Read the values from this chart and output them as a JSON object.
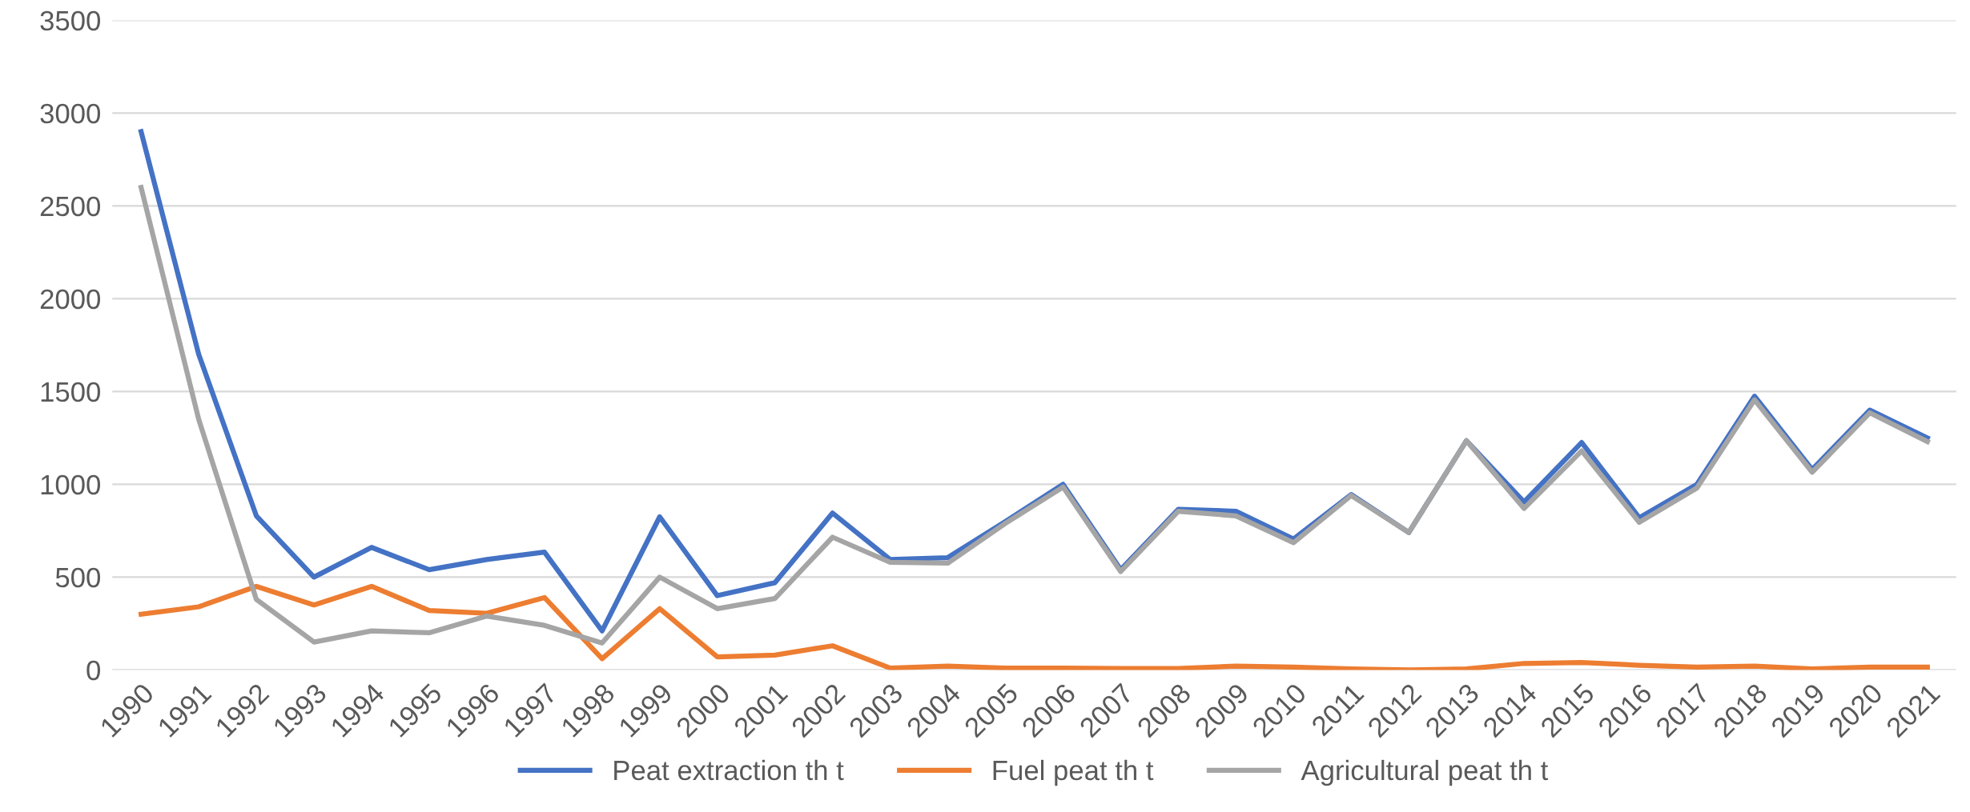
{
  "chart_data": {
    "type": "line",
    "categories": [
      "1990",
      "1991",
      "1992",
      "1993",
      "1994",
      "1995",
      "1996",
      "1997",
      "1998",
      "1999",
      "2000",
      "2001",
      "2002",
      "2003",
      "2004",
      "2005",
      "2006",
      "2007",
      "2008",
      "2009",
      "2010",
      "2011",
      "2012",
      "2013",
      "2014",
      "2015",
      "2016",
      "2017",
      "2018",
      "2019",
      "2020",
      "2021"
    ],
    "series": [
      {
        "name": "Peat extraction th t",
        "color": "#4472c4",
        "values": [
          2900,
          1700,
          830,
          500,
          660,
          540,
          595,
          635,
          210,
          825,
          400,
          470,
          845,
          595,
          605,
          800,
          1000,
          540,
          865,
          855,
          705,
          945,
          740,
          1235,
          905,
          1225,
          820,
          1000,
          1475,
          1080,
          1400,
          1250
        ]
      },
      {
        "name": "Fuel peat th t",
        "color": "#ed7d31",
        "values": [
          300,
          340,
          450,
          350,
          450,
          320,
          305,
          390,
          60,
          330,
          70,
          80,
          130,
          10,
          20,
          10,
          10,
          8,
          8,
          20,
          15,
          5,
          0,
          5,
          35,
          40,
          25,
          15,
          20,
          5,
          15,
          15
        ]
      },
      {
        "name": "Agricultural peat th t",
        "color": "#a5a5a5",
        "values": [
          2600,
          1350,
          380,
          150,
          210,
          200,
          290,
          240,
          145,
          500,
          330,
          385,
          715,
          580,
          575,
          790,
          985,
          530,
          855,
          830,
          685,
          940,
          740,
          1235,
          870,
          1180,
          795,
          980,
          1455,
          1065,
          1385,
          1230
        ]
      }
    ],
    "ylim": [
      0,
      3500
    ],
    "yticks": [
      0,
      500,
      1000,
      1500,
      2000,
      2500,
      3000,
      3500
    ],
    "grid": "y",
    "legend": "bottom",
    "marker": "none",
    "line_style": "solid"
  }
}
